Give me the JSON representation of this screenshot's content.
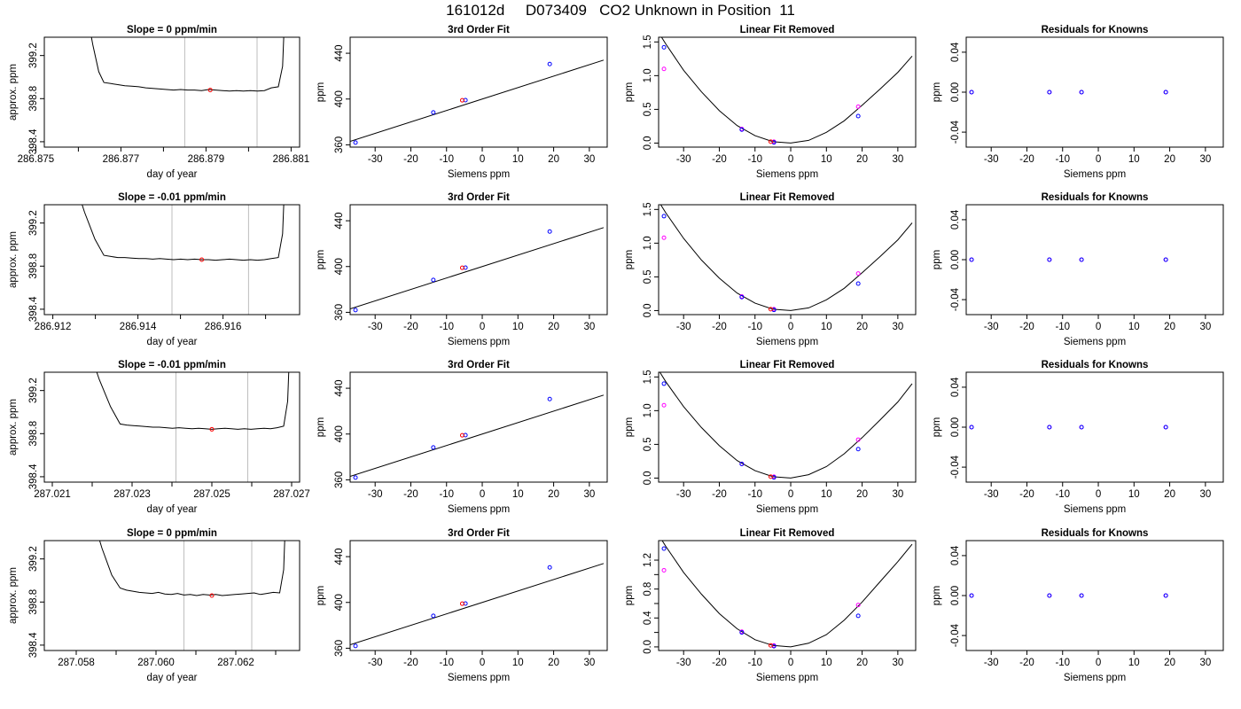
{
  "main_title": "161012d     D073409   CO2 Unknown in Position  11",
  "colors": {
    "line": "#000000",
    "known": "#0000ff",
    "unknown": "#ff0000",
    "residual_initial": "#ff00ff",
    "window": "#bebebe"
  },
  "chart_data": [
    {
      "type": "line",
      "row": 0,
      "panel": "time-series",
      "title": "Slope =  0  ppm/min",
      "xlabel": "day of year",
      "ylabel": "approx. ppm",
      "xlim": [
        286.8752,
        286.8812
      ],
      "ylim": [
        398.35,
        399.37
      ],
      "xticks": [
        286.875,
        286.877,
        286.879,
        286.881
      ],
      "xminor": [
        286.876,
        286.878,
        286.88
      ],
      "yticks": [
        398.4,
        398.8,
        399.2
      ],
      "window": [
        286.8785,
        286.8802
      ],
      "point": [
        286.8791,
        398.88
      ],
      "trace": {
        "drop_start": 286.8762,
        "plateau_start": 286.8766,
        "rise_start": 286.8807,
        "end": 286.8808,
        "top": 399.6,
        "plateau": [
          398.95,
          398.94,
          398.93,
          398.92,
          398.915,
          398.91,
          398.9,
          398.895,
          398.89,
          398.885,
          398.88,
          398.885,
          398.88,
          398.88,
          398.875,
          398.885,
          398.88,
          398.875,
          398.87,
          398.875,
          398.87,
          398.875,
          398.87,
          398.875,
          398.9,
          398.91
        ]
      }
    },
    {
      "type": "scatter",
      "row": 0,
      "panel": "fit",
      "title": "3rd Order Fit",
      "xlabel": "Siemens ppm",
      "ylabel": "ppm",
      "xlim": [
        -37,
        35
      ],
      "ylim": [
        358,
        454
      ],
      "xticks": [
        -30,
        -20,
        -10,
        0,
        10,
        20,
        30
      ],
      "yticks": [
        360,
        400,
        440
      ],
      "known": {
        "x": [
          -35.5,
          -13.7,
          -4.7,
          18.9
        ],
        "y": [
          362.0,
          388.3,
          399.0,
          430.6
        ]
      },
      "unknown": {
        "x": [
          -5.6
        ],
        "y": [
          398.9
        ]
      },
      "curve": {
        "slope": 1.0,
        "intercept": 400
      }
    },
    {
      "type": "scatter",
      "row": 0,
      "panel": "linear-removed",
      "title": "Linear Fit Removed",
      "xlabel": "Siemens ppm",
      "ylabel": "ppm",
      "xlim": [
        -37,
        35
      ],
      "ylim": [
        -0.06,
        1.57
      ],
      "xticks": [
        -30,
        -20,
        -10,
        0,
        10,
        20,
        30
      ],
      "yticks": [
        0.0,
        0.5,
        1.0,
        1.5
      ],
      "known": {
        "x": [
          -35.5,
          -13.7,
          -4.7,
          18.9
        ],
        "y": [
          1.42,
          0.2,
          0.01,
          0.4
        ]
      },
      "initial": {
        "x": [
          -35.5,
          -13.7,
          -4.7,
          18.9
        ],
        "y": [
          1.1,
          0.21,
          0.02,
          0.54
        ]
      },
      "unknown": {
        "x": [
          -5.6
        ],
        "y": [
          0.02
        ]
      },
      "curve": {
        "x": [
          -37,
          -35,
          -30,
          -25,
          -20,
          -15,
          -10,
          -5,
          0,
          5,
          10,
          15,
          20,
          25,
          30,
          34
        ],
        "y": [
          1.64,
          1.47,
          1.08,
          0.76,
          0.48,
          0.26,
          0.11,
          0.02,
          0.0,
          0.04,
          0.16,
          0.33,
          0.56,
          0.8,
          1.05,
          1.29
        ]
      }
    },
    {
      "type": "scatter",
      "row": 0,
      "panel": "residuals",
      "title": "Residuals for Knowns",
      "xlabel": "Siemens ppm",
      "ylabel": "ppm",
      "xlim": [
        -37,
        35
      ],
      "ylim": [
        -0.055,
        0.055
      ],
      "xticks": [
        -30,
        -20,
        -10,
        0,
        10,
        20,
        30
      ],
      "yticks": [
        -0.04,
        0.0,
        0.04
      ],
      "known": {
        "x": [
          -35.5,
          -13.7,
          -4.7,
          18.9
        ],
        "y": [
          0,
          0,
          0,
          0
        ]
      },
      "initial": {
        "x": [
          -35.5,
          -13.7,
          -4.7,
          18.9
        ],
        "y": [
          0,
          0,
          0,
          0
        ]
      }
    },
    {
      "type": "line",
      "row": 1,
      "panel": "time-series",
      "title": "Slope =  -0.01  ppm/min",
      "xlabel": "day of year",
      "ylabel": "approx. ppm",
      "xlim": [
        286.9118,
        286.9178
      ],
      "ylim": [
        398.35,
        399.37
      ],
      "xticks": [
        286.912,
        286.914,
        286.916
      ],
      "xminor": [
        286.913,
        286.915,
        286.917
      ],
      "yticks": [
        398.4,
        398.8,
        399.2
      ],
      "window": [
        286.9148,
        286.9166
      ],
      "point": [
        286.9155,
        398.86
      ],
      "trace": {
        "drop_start": 286.9125,
        "plateau_start": 286.9132,
        "rise_start": 286.9173,
        "end": 286.9174,
        "top": 399.6,
        "plateau": [
          398.9,
          398.89,
          398.88,
          398.88,
          398.875,
          398.87,
          398.87,
          398.865,
          398.87,
          398.865,
          398.86,
          398.865,
          398.86,
          398.865,
          398.86,
          398.86,
          398.855,
          398.86,
          398.865,
          398.86,
          398.855,
          398.86,
          398.855,
          398.86,
          398.87,
          398.88
        ]
      }
    },
    {
      "type": "scatter",
      "row": 1,
      "panel": "fit",
      "title": "3rd Order Fit",
      "xlabel": "Siemens ppm",
      "ylabel": "ppm",
      "xlim": [
        -37,
        35
      ],
      "ylim": [
        358,
        454
      ],
      "xticks": [
        -30,
        -20,
        -10,
        0,
        10,
        20,
        30
      ],
      "yticks": [
        360,
        400,
        440
      ],
      "known": {
        "x": [
          -35.5,
          -13.7,
          -4.7,
          18.9
        ],
        "y": [
          362.0,
          388.3,
          399.0,
          430.6
        ]
      },
      "unknown": {
        "x": [
          -5.6
        ],
        "y": [
          398.9
        ]
      },
      "curve": {
        "slope": 1.0,
        "intercept": 400
      }
    },
    {
      "type": "scatter",
      "row": 1,
      "panel": "linear-removed",
      "title": "Linear Fit Removed",
      "xlabel": "Siemens ppm",
      "ylabel": "ppm",
      "xlim": [
        -37,
        35
      ],
      "ylim": [
        -0.06,
        1.57
      ],
      "xticks": [
        -30,
        -20,
        -10,
        0,
        10,
        20,
        30
      ],
      "yticks": [
        0.0,
        0.5,
        1.0,
        1.5
      ],
      "known": {
        "x": [
          -35.5,
          -13.7,
          -4.7,
          18.9
        ],
        "y": [
          1.4,
          0.2,
          0.01,
          0.4
        ]
      },
      "initial": {
        "x": [
          -35.5,
          -13.7,
          -4.7,
          18.9
        ],
        "y": [
          1.08,
          0.21,
          0.02,
          0.55
        ]
      },
      "unknown": {
        "x": [
          -5.6
        ],
        "y": [
          0.02
        ]
      },
      "curve": {
        "x": [
          -37,
          -35,
          -30,
          -25,
          -20,
          -15,
          -10,
          -5,
          0,
          5,
          10,
          15,
          20,
          25,
          30,
          34
        ],
        "y": [
          1.62,
          1.45,
          1.07,
          0.75,
          0.48,
          0.26,
          0.11,
          0.02,
          0.0,
          0.04,
          0.16,
          0.33,
          0.56,
          0.8,
          1.05,
          1.3
        ]
      }
    },
    {
      "type": "scatter",
      "row": 1,
      "panel": "residuals",
      "title": "Residuals for Knowns",
      "xlabel": "Siemens ppm",
      "ylabel": "ppm",
      "xlim": [
        -37,
        35
      ],
      "ylim": [
        -0.055,
        0.055
      ],
      "xticks": [
        -30,
        -20,
        -10,
        0,
        10,
        20,
        30
      ],
      "yticks": [
        -0.04,
        0.0,
        0.04
      ],
      "known": {
        "x": [
          -35.5,
          -13.7,
          -4.7,
          18.9
        ],
        "y": [
          0,
          0,
          0,
          0
        ]
      },
      "initial": {
        "x": [
          -35.5,
          -13.7,
          -4.7,
          18.9
        ],
        "y": [
          0,
          0,
          0,
          0
        ]
      }
    },
    {
      "type": "line",
      "row": 2,
      "panel": "time-series",
      "title": "Slope =  -0.01  ppm/min",
      "xlabel": "day of year",
      "ylabel": "approx. ppm",
      "xlim": [
        287.0208,
        287.0272
      ],
      "ylim": [
        398.35,
        399.37
      ],
      "xticks": [
        287.021,
        287.023,
        287.025,
        287.027
      ],
      "xminor": [
        287.022,
        287.024,
        287.026
      ],
      "yticks": [
        398.4,
        398.8,
        399.2
      ],
      "window": [
        287.0241,
        287.0259
      ],
      "point": [
        287.025,
        398.84
      ],
      "trace": {
        "drop_start": 287.0219,
        "plateau_start": 287.0227,
        "rise_start": 287.0268,
        "end": 287.0269,
        "top": 399.6,
        "plateau": [
          398.89,
          398.88,
          398.875,
          398.87,
          398.865,
          398.86,
          398.86,
          398.855,
          398.85,
          398.855,
          398.85,
          398.845,
          398.85,
          398.845,
          398.84,
          398.845,
          398.85,
          398.845,
          398.84,
          398.845,
          398.84,
          398.845,
          398.85,
          398.845,
          398.855,
          398.87
        ]
      }
    },
    {
      "type": "scatter",
      "row": 2,
      "panel": "fit",
      "title": "3rd Order Fit",
      "xlabel": "Siemens ppm",
      "ylabel": "ppm",
      "xlim": [
        -37,
        35
      ],
      "ylim": [
        358,
        454
      ],
      "xticks": [
        -30,
        -20,
        -10,
        0,
        10,
        20,
        30
      ],
      "yticks": [
        360,
        400,
        440
      ],
      "known": {
        "x": [
          -35.5,
          -13.7,
          -4.7,
          18.9
        ],
        "y": [
          362.0,
          388.3,
          399.0,
          430.6
        ]
      },
      "unknown": {
        "x": [
          -5.6
        ],
        "y": [
          398.9
        ]
      },
      "curve": {
        "slope": 1.0,
        "intercept": 400
      }
    },
    {
      "type": "scatter",
      "row": 2,
      "panel": "linear-removed",
      "title": "Linear Fit Removed",
      "xlabel": "Siemens ppm",
      "ylabel": "ppm",
      "xlim": [
        -37,
        35
      ],
      "ylim": [
        -0.06,
        1.57
      ],
      "xticks": [
        -30,
        -20,
        -10,
        0,
        10,
        20,
        30
      ],
      "yticks": [
        0.0,
        0.5,
        1.0,
        1.5
      ],
      "known": {
        "x": [
          -35.5,
          -13.7,
          -4.7,
          18.9
        ],
        "y": [
          1.4,
          0.21,
          0.01,
          0.43
        ]
      },
      "initial": {
        "x": [
          -35.5,
          -13.7,
          -4.7,
          18.9
        ],
        "y": [
          1.08,
          0.21,
          0.02,
          0.57
        ]
      },
      "unknown": {
        "x": [
          -5.6
        ],
        "y": [
          0.02
        ]
      },
      "curve": {
        "x": [
          -37,
          -35,
          -30,
          -25,
          -20,
          -15,
          -10,
          -5,
          0,
          5,
          10,
          15,
          20,
          25,
          30,
          34
        ],
        "y": [
          1.6,
          1.43,
          1.06,
          0.75,
          0.48,
          0.26,
          0.11,
          0.02,
          0.0,
          0.05,
          0.17,
          0.36,
          0.6,
          0.86,
          1.13,
          1.4
        ]
      }
    },
    {
      "type": "scatter",
      "row": 2,
      "panel": "residuals",
      "title": "Residuals for Knowns",
      "xlabel": "Siemens ppm",
      "ylabel": "ppm",
      "xlim": [
        -37,
        35
      ],
      "ylim": [
        -0.055,
        0.055
      ],
      "xticks": [
        -30,
        -20,
        -10,
        0,
        10,
        20,
        30
      ],
      "yticks": [
        -0.04,
        0.0,
        0.04
      ],
      "known": {
        "x": [
          -35.5,
          -13.7,
          -4.7,
          18.9
        ],
        "y": [
          0,
          0,
          0,
          0
        ]
      },
      "initial": {
        "x": [
          -35.5,
          -13.7,
          -4.7,
          18.9
        ],
        "y": [
          0,
          0,
          0,
          0
        ]
      }
    },
    {
      "type": "line",
      "row": 3,
      "panel": "time-series",
      "title": "Slope =  0  ppm/min",
      "xlabel": "day of year",
      "ylabel": "approx. ppm",
      "xlim": [
        287.0572,
        287.0636
      ],
      "ylim": [
        398.35,
        399.37
      ],
      "xticks": [
        287.058,
        287.06,
        287.062
      ],
      "xminor": [
        287.059,
        287.061,
        287.063
      ],
      "yticks": [
        398.4,
        398.8,
        399.2
      ],
      "window": [
        287.0607,
        287.0624
      ],
      "point": [
        287.0614,
        398.86
      ],
      "trace": {
        "drop_start": 287.0584,
        "plateau_start": 287.0591,
        "rise_start": 287.0631,
        "end": 287.0632,
        "top": 399.6,
        "plateau": [
          398.93,
          398.91,
          398.9,
          398.89,
          398.885,
          398.88,
          398.89,
          398.875,
          398.87,
          398.88,
          398.865,
          398.87,
          398.86,
          398.87,
          398.865,
          398.87,
          398.86,
          398.865,
          398.87,
          398.875,
          398.88,
          398.885,
          398.87,
          398.88,
          398.89,
          398.885
        ]
      }
    },
    {
      "type": "scatter",
      "row": 3,
      "panel": "fit",
      "title": "3rd Order Fit",
      "xlabel": "Siemens ppm",
      "ylabel": "ppm",
      "xlim": [
        -37,
        35
      ],
      "ylim": [
        358,
        454
      ],
      "xticks": [
        -30,
        -20,
        -10,
        0,
        10,
        20,
        30
      ],
      "yticks": [
        360,
        400,
        440
      ],
      "known": {
        "x": [
          -35.5,
          -13.7,
          -4.7,
          18.9
        ],
        "y": [
          362.0,
          388.3,
          399.0,
          430.6
        ]
      },
      "unknown": {
        "x": [
          -5.6
        ],
        "y": [
          398.9
        ]
      },
      "curve": {
        "slope": 1.0,
        "intercept": 400
      }
    },
    {
      "type": "scatter",
      "row": 3,
      "panel": "linear-removed",
      "title": "Linear Fit Removed",
      "xlabel": "Siemens ppm",
      "ylabel": "ppm",
      "xlim": [
        -37,
        35
      ],
      "ylim": [
        -0.05,
        1.47
      ],
      "xticks": [
        -30,
        -20,
        -10,
        0,
        10,
        20,
        30
      ],
      "yticks": [
        0.0,
        0.2,
        0.4,
        0.6,
        0.8,
        1.0,
        1.2
      ],
      "known": {
        "x": [
          -35.5,
          -13.7,
          -4.7,
          18.9
        ],
        "y": [
          1.36,
          0.2,
          0.01,
          0.43
        ]
      },
      "initial": {
        "x": [
          -35.5,
          -13.7,
          -4.7,
          18.9
        ],
        "y": [
          1.06,
          0.21,
          0.02,
          0.58
        ]
      },
      "unknown": {
        "x": [
          -5.6
        ],
        "y": [
          0.02
        ]
      },
      "curve": {
        "x": [
          -37,
          -35,
          -30,
          -25,
          -20,
          -15,
          -10,
          -5,
          0,
          5,
          10,
          15,
          20,
          25,
          30,
          34
        ],
        "y": [
          1.55,
          1.39,
          1.03,
          0.73,
          0.46,
          0.25,
          0.1,
          0.02,
          0.0,
          0.05,
          0.17,
          0.37,
          0.62,
          0.9,
          1.18,
          1.42
        ]
      }
    },
    {
      "type": "scatter",
      "row": 3,
      "panel": "residuals",
      "title": "Residuals for Knowns",
      "xlabel": "Siemens ppm",
      "ylabel": "ppm",
      "xlim": [
        -37,
        35
      ],
      "ylim": [
        -0.055,
        0.055
      ],
      "xticks": [
        -30,
        -20,
        -10,
        0,
        10,
        20,
        30
      ],
      "yticks": [
        -0.04,
        0.0,
        0.04
      ],
      "known": {
        "x": [
          -35.5,
          -13.7,
          -4.7,
          18.9
        ],
        "y": [
          0,
          0,
          0,
          0
        ]
      },
      "initial": {
        "x": [
          -35.5,
          -13.7,
          -4.7,
          18.9
        ],
        "y": [
          0,
          0,
          0,
          0
        ]
      }
    }
  ]
}
